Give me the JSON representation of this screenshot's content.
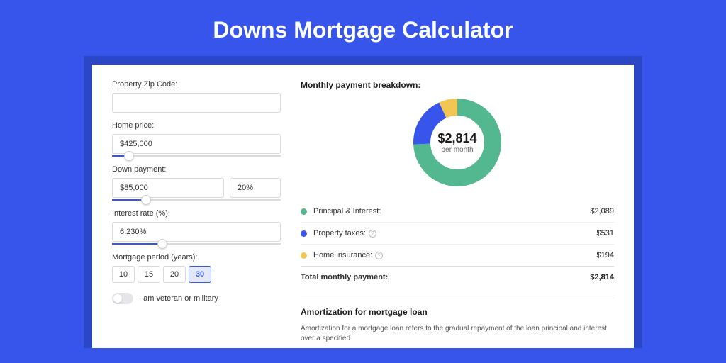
{
  "page": {
    "title": "Downs Mortgage Calculator",
    "background_color": "#3755ea",
    "frame_color": "#2b46c7",
    "card_color": "#ffffff"
  },
  "form": {
    "zip": {
      "label": "Property Zip Code:",
      "value": ""
    },
    "home_price": {
      "label": "Home price:",
      "value": "$425,000",
      "slider_pct": 10
    },
    "down_payment": {
      "label": "Down payment:",
      "value": "$85,000",
      "pct_value": "20%",
      "slider_pct": 20
    },
    "interest_rate": {
      "label": "Interest rate (%):",
      "value": "6.230%",
      "slider_pct": 30
    },
    "period": {
      "label": "Mortgage period (years):",
      "options": [
        "10",
        "15",
        "20",
        "30"
      ],
      "selected": "30"
    },
    "veteran": {
      "label": "I am veteran or military",
      "checked": false
    }
  },
  "breakdown": {
    "title": "Monthly payment breakdown:",
    "center_value": "$2,814",
    "center_sub": "per month",
    "donut": {
      "radius": 50,
      "stroke_width": 24,
      "segments": [
        {
          "key": "principal_interest",
          "color": "#53b78f",
          "fraction": 0.742
        },
        {
          "key": "property_taxes",
          "color": "#3755ea",
          "fraction": 0.189
        },
        {
          "key": "home_insurance",
          "color": "#f3c552",
          "fraction": 0.069
        }
      ]
    },
    "rows": [
      {
        "label": "Principal & Interest:",
        "value": "$2,089",
        "color": "#53b78f",
        "info": false
      },
      {
        "label": "Property taxes:",
        "value": "$531",
        "color": "#3755ea",
        "info": true
      },
      {
        "label": "Home insurance:",
        "value": "$194",
        "color": "#f3c552",
        "info": true
      }
    ],
    "total": {
      "label": "Total monthly payment:",
      "value": "$2,814"
    }
  },
  "amortization": {
    "title": "Amortization for mortgage loan",
    "text": "Amortization for a mortgage loan refers to the gradual repayment of the loan principal and interest over a specified"
  }
}
